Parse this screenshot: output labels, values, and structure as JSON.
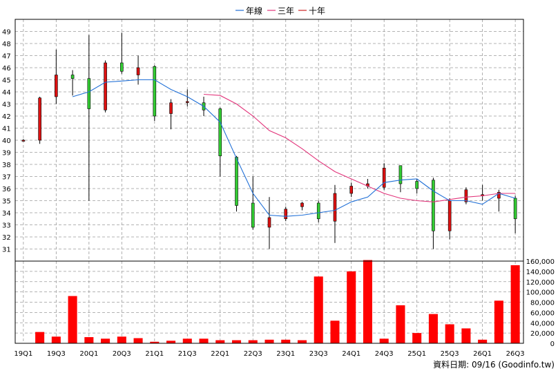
{
  "chart_data": {
    "type": "candlestick",
    "legend": [
      {
        "name": "年線",
        "color": "#1f6fd6"
      },
      {
        "name": "三年",
        "color": "#e2337a"
      },
      {
        "name": "十年",
        "color": "#cc2222"
      }
    ],
    "price_axis": {
      "ylim": [
        30,
        50
      ],
      "ticks": [
        31,
        32,
        33,
        34,
        35,
        36,
        37,
        38,
        39,
        40,
        41,
        42,
        43,
        44,
        45,
        46,
        47,
        48,
        49
      ]
    },
    "volume_axis": {
      "ylim": [
        0,
        160000
      ],
      "ticks": [
        "0",
        "20,000",
        "40,000",
        "60,000",
        "80,000",
        "100,000",
        "120,000",
        "140,000",
        "160,000"
      ]
    },
    "x_labels": [
      "19Q1",
      "19Q3",
      "20Q1",
      "20Q3",
      "21Q1",
      "21Q3",
      "22Q1",
      "22Q3",
      "23Q1",
      "23Q3",
      "24Q1",
      "24Q3",
      "25Q1",
      "25Q3",
      "26Q1",
      "26Q3"
    ],
    "candles": [
      {
        "q": "19Q1",
        "open": 40.0,
        "close": 40.0,
        "high": 40.1,
        "low": 39.9
      },
      {
        "q": "19Q2",
        "open": 40.0,
        "close": 43.5,
        "high": 43.6,
        "low": 39.7
      },
      {
        "q": "19Q3",
        "open": 43.6,
        "close": 45.4,
        "high": 47.5,
        "low": 43.0
      },
      {
        "q": "19Q4",
        "open": 45.4,
        "close": 45.1,
        "high": 45.8,
        "low": 43.7
      },
      {
        "q": "20Q1",
        "open": 45.1,
        "close": 42.6,
        "high": 48.7,
        "low": 35.0
      },
      {
        "q": "20Q2",
        "open": 42.5,
        "close": 46.4,
        "high": 46.6,
        "low": 42.3
      },
      {
        "q": "20Q3",
        "open": 46.4,
        "close": 45.7,
        "high": 48.9,
        "low": 45.5
      },
      {
        "q": "20Q4",
        "open": 45.4,
        "close": 46.0,
        "high": 47.0,
        "low": 44.6
      },
      {
        "q": "21Q1",
        "open": 46.1,
        "close": 42.0,
        "high": 46.2,
        "low": 41.6
      },
      {
        "q": "21Q2",
        "open": 42.2,
        "close": 43.1,
        "high": 43.4,
        "low": 40.9
      },
      {
        "q": "21Q3",
        "open": 43.2,
        "close": 43.2,
        "high": 44.2,
        "low": 42.8
      },
      {
        "q": "21Q4",
        "open": 43.1,
        "close": 42.5,
        "high": 43.6,
        "low": 42.0
      },
      {
        "q": "22Q1",
        "open": 42.6,
        "close": 38.7,
        "high": 42.7,
        "low": 37.0
      },
      {
        "q": "22Q2",
        "open": 38.6,
        "close": 34.6,
        "high": 38.7,
        "low": 34.1
      },
      {
        "q": "22Q3",
        "open": 34.8,
        "close": 32.8,
        "high": 37.0,
        "low": 32.6
      },
      {
        "q": "22Q4",
        "open": 32.8,
        "close": 33.6,
        "high": 35.3,
        "low": 31.0
      },
      {
        "q": "23Q1",
        "open": 33.5,
        "close": 34.3,
        "high": 34.5,
        "low": 33.3
      },
      {
        "q": "23Q2",
        "open": 34.5,
        "close": 34.8,
        "high": 34.9,
        "low": 34.2
      },
      {
        "q": "23Q3",
        "open": 34.8,
        "close": 33.5,
        "high": 35.0,
        "low": 33.2
      },
      {
        "q": "23Q4",
        "open": 33.3,
        "close": 35.6,
        "high": 36.3,
        "low": 31.5
      },
      {
        "q": "24Q1",
        "open": 35.6,
        "close": 36.2,
        "high": 36.5,
        "low": 35.3
      },
      {
        "q": "24Q2",
        "open": 36.2,
        "close": 36.4,
        "high": 36.8,
        "low": 36.0
      },
      {
        "q": "24Q3",
        "open": 36.1,
        "close": 37.7,
        "high": 38.1,
        "low": 35.9
      },
      {
        "q": "24Q4",
        "open": 37.9,
        "close": 36.4,
        "high": 37.9,
        "low": 35.7
      },
      {
        "q": "25Q1",
        "open": 36.6,
        "close": 36.0,
        "high": 36.8,
        "low": 35.6
      },
      {
        "q": "25Q2",
        "open": 36.7,
        "close": 32.5,
        "high": 36.9,
        "low": 31.0
      },
      {
        "q": "25Q3",
        "open": 32.5,
        "close": 35.0,
        "high": 35.2,
        "low": 31.8
      },
      {
        "q": "25Q4",
        "open": 34.9,
        "close": 35.9,
        "high": 36.1,
        "low": 34.7
      },
      {
        "q": "26Q1",
        "open": 35.4,
        "close": 35.5,
        "high": 36.3,
        "low": 35.0
      },
      {
        "q": "26Q2",
        "open": 35.2,
        "close": 35.7,
        "high": 35.9,
        "low": 34.1
      },
      {
        "q": "26Q3",
        "open": 35.2,
        "close": 33.5,
        "high": 35.4,
        "low": 32.3
      }
    ],
    "volume": [
      0,
      22000,
      13000,
      92000,
      12000,
      9000,
      13000,
      10000,
      3000,
      5000,
      9000,
      9000,
      6000,
      6000,
      6000,
      7000,
      7000,
      6000,
      130000,
      44000,
      140000,
      162000,
      9000,
      74000,
      20000,
      57000,
      37000,
      29000,
      7000,
      83000,
      152000
    ],
    "line_year": [
      null,
      null,
      null,
      43.6,
      44.0,
      44.8,
      44.9,
      45.0,
      45.0,
      44.2,
      43.6,
      42.8,
      41.5,
      38.5,
      35.6,
      33.8,
      33.7,
      33.8,
      34.0,
      34.2,
      34.9,
      35.3,
      36.5,
      36.7,
      36.8,
      35.8,
      35.0,
      35.0,
      34.7,
      35.6,
      35.2
    ],
    "line_three_year": [
      null,
      null,
      null,
      null,
      null,
      null,
      null,
      null,
      null,
      null,
      null,
      43.8,
      43.7,
      43.0,
      42.0,
      40.8,
      40.2,
      39.3,
      38.3,
      37.4,
      36.8,
      36.2,
      35.6,
      35.2,
      35.0,
      34.9,
      35.1,
      35.3,
      35.4,
      35.6,
      35.6
    ],
    "footer": "資料日期: 09/16  (Goodinfo.tw)"
  }
}
